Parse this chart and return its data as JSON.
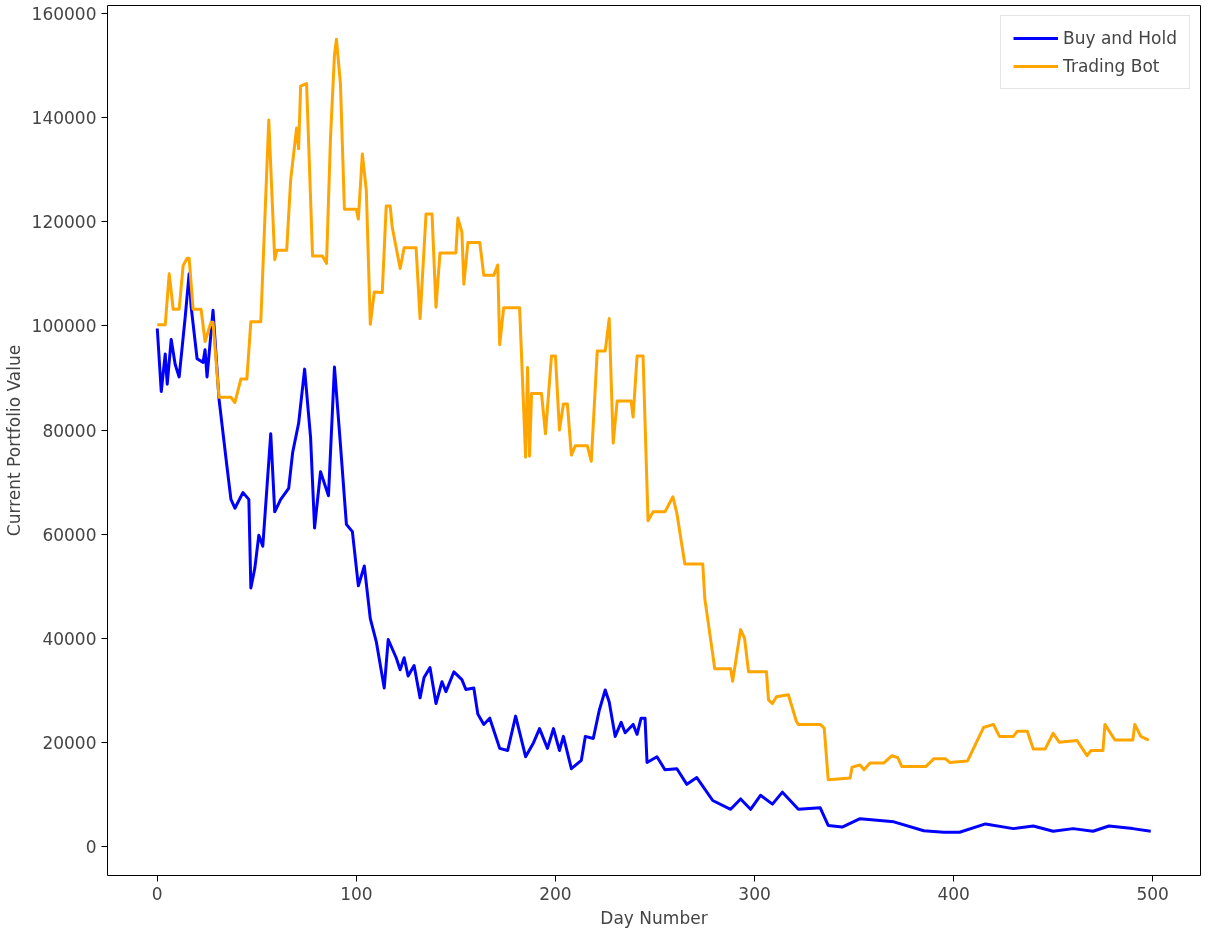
{
  "chart_data": {
    "type": "line",
    "xlabel": "Day Number",
    "ylabel": "Current Portfolio Value",
    "xlim": [
      -25,
      524
    ],
    "ylim": [
      -5500,
      161500
    ],
    "xticks": [
      0,
      100,
      200,
      300,
      400,
      500
    ],
    "yticks": [
      0,
      20000,
      40000,
      60000,
      80000,
      100000,
      120000,
      140000,
      160000
    ],
    "grid": false,
    "legend": "top right",
    "line_style": "solid",
    "marker": "none",
    "series": [
      {
        "name": "Buy and Hold",
        "color": "#0000ff",
        "x": [
          0,
          2,
          4,
          5,
          7,
          9,
          11,
          14,
          16,
          17,
          20,
          23,
          24,
          25,
          28,
          31,
          35,
          37,
          39,
          43,
          46,
          47,
          49,
          51,
          53,
          57,
          59,
          62,
          66,
          68,
          71,
          74,
          77,
          79,
          82,
          86,
          89,
          92,
          95,
          98,
          101,
          104,
          107,
          110,
          114,
          116,
          120,
          122,
          124,
          126,
          129,
          132,
          134,
          137,
          140,
          143,
          145,
          149,
          153,
          155,
          159,
          161,
          164,
          167,
          172,
          176,
          180,
          185,
          189,
          192,
          196,
          199,
          202,
          204,
          208,
          213,
          215,
          219,
          222,
          225,
          227,
          230,
          233,
          235,
          239,
          241,
          243,
          245,
          246,
          251,
          255,
          261,
          266,
          271,
          279,
          288,
          293,
          298,
          303,
          309,
          314,
          322,
          333,
          337,
          344,
          353,
          370,
          385,
          395,
          403,
          416,
          430,
          440,
          450,
          460,
          470,
          478,
          490,
          499
        ],
        "values": [
          99500,
          87400,
          94600,
          88800,
          97400,
          92600,
          90200,
          101600,
          110000,
          103700,
          93700,
          93000,
          95400,
          90200,
          103000,
          86000,
          73000,
          66700,
          65000,
          68000,
          66700,
          49700,
          53500,
          59800,
          57700,
          79300,
          64300,
          66700,
          68800,
          75700,
          81300,
          91700,
          78600,
          61200,
          72000,
          67400,
          92100,
          77200,
          61900,
          60500,
          50100,
          53900,
          43800,
          39400,
          30500,
          39800,
          36300,
          34000,
          36300,
          32800,
          34800,
          28600,
          32500,
          34400,
          27500,
          31700,
          29800,
          33600,
          32100,
          30200,
          30500,
          25500,
          23500,
          24700,
          18900,
          18500,
          25100,
          17300,
          20000,
          22700,
          18900,
          22700,
          18500,
          21200,
          15000,
          16600,
          21200,
          20800,
          26200,
          30100,
          27800,
          21200,
          23900,
          21900,
          23500,
          21600,
          24700,
          24700,
          16200,
          17300,
          14800,
          15000,
          12000,
          13300,
          8900,
          7200,
          9200,
          7200,
          9900,
          8200,
          10500,
          7200,
          7500,
          4100,
          3800,
          5400,
          4800,
          3100,
          2800,
          2800,
          4400,
          3500,
          4000,
          3000,
          3500,
          3000,
          4000,
          3500,
          3000
        ]
      },
      {
        "name": "Trading Bot",
        "color": "#ffa500",
        "x": [
          0,
          4,
          6,
          8,
          11,
          13,
          15,
          16,
          18,
          22,
          24,
          27,
          28,
          31,
          37,
          39,
          42,
          45,
          47,
          52,
          56,
          59,
          60,
          65,
          67,
          70,
          71,
          72,
          75,
          78,
          83,
          85,
          87,
          89,
          90,
          92,
          94,
          100,
          101,
          103,
          105,
          107,
          109,
          113,
          115,
          117,
          118,
          122,
          124,
          130,
          132,
          135,
          138,
          140,
          142,
          150,
          151,
          153,
          154,
          156,
          162,
          164,
          169,
          171,
          172,
          174,
          182,
          185,
          186,
          187,
          188,
          193,
          195,
          198,
          200,
          202,
          204,
          206,
          208,
          210,
          216,
          218,
          221,
          225,
          227,
          229,
          231,
          238,
          239,
          241,
          244,
          246.5,
          249,
          255,
          259,
          261,
          265,
          274,
          275,
          279,
          280,
          288,
          289,
          293,
          295,
          297,
          306,
          307,
          309,
          311,
          317,
          321,
          322,
          333,
          335,
          337,
          348,
          349,
          353,
          355,
          358,
          365,
          369,
          372,
          374,
          386,
          390,
          396,
          398,
          407,
          415,
          420,
          423,
          430,
          432,
          437,
          440,
          446,
          450,
          453,
          462,
          467,
          469,
          475,
          476,
          481,
          490,
          491,
          494,
          498
        ],
        "values": [
          100200,
          100200,
          110000,
          103200,
          103200,
          111600,
          113000,
          113000,
          103200,
          103200,
          97000,
          100700,
          100700,
          86300,
          86300,
          85300,
          89800,
          89800,
          100800,
          100800,
          139500,
          112700,
          114500,
          114500,
          128000,
          138000,
          134000,
          146000,
          146500,
          113400,
          113400,
          112000,
          136000,
          152000,
          155000,
          146500,
          122400,
          122400,
          120500,
          133000,
          126000,
          100300,
          106500,
          106400,
          123000,
          123000,
          119000,
          111000,
          115000,
          115000,
          101400,
          121500,
          121500,
          103600,
          114000,
          114000,
          120700,
          118000,
          108000,
          116000,
          116000,
          109700,
          109700,
          111700,
          96400,
          103500,
          103500,
          74800,
          92000,
          75000,
          87000,
          87000,
          79300,
          94200,
          94200,
          80000,
          85000,
          85000,
          75200,
          77000,
          77000,
          74000,
          95200,
          95200,
          101400,
          77500,
          85600,
          85600,
          82500,
          94200,
          94200,
          62600,
          64300,
          64300,
          67200,
          64000,
          54300,
          54300,
          47700,
          37000,
          34200,
          34200,
          31800,
          41700,
          40000,
          33600,
          33600,
          28200,
          27500,
          28800,
          29200,
          24100,
          23500,
          23500,
          22800,
          12900,
          13200,
          15300,
          15700,
          14800,
          16100,
          16100,
          17500,
          17100,
          15400,
          15400,
          16900,
          16900,
          16200,
          16500,
          22900,
          23500,
          21200,
          21200,
          22200,
          22200,
          18800,
          18800,
          21800,
          20100,
          20400,
          17500,
          18500,
          18500,
          23500,
          20500,
          20500,
          23500,
          21200,
          20500
        ]
      }
    ]
  }
}
